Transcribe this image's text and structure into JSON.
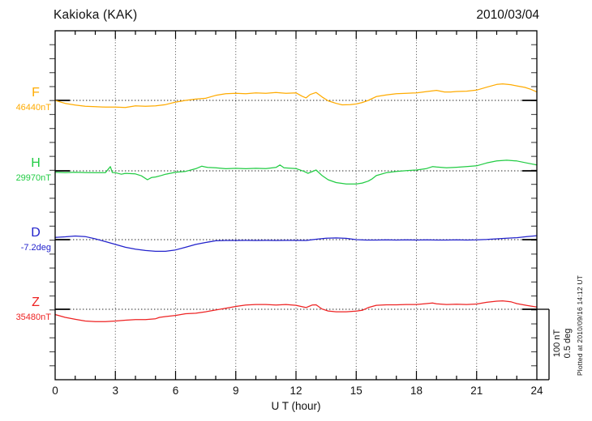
{
  "header": {
    "title": "Kakioka (KAK)",
    "date": "2010/03/04"
  },
  "xlabel": "U T (hour)",
  "scale_bar": {
    "line1": "100 nT",
    "line2": "0.5 deg"
  },
  "footer_note": "Plotted at 2010/09/16 14:12 UT",
  "colors": {
    "F": "#FFAB00",
    "H": "#22CC44",
    "D": "#2222CC",
    "Z": "#EE2222",
    "frame": "#000000",
    "grid": "#444444",
    "tick": "#555555",
    "baseline": "#222222"
  },
  "chart_data": {
    "type": "line",
    "title": "Kakioka (KAK)",
    "date": "2010/03/04",
    "xlabel": "U T (hour)",
    "x_range": [
      0,
      24
    ],
    "x_major_ticks": [
      0,
      3,
      6,
      9,
      12,
      15,
      18,
      21,
      24
    ],
    "x_minor_step_hours": 1,
    "grid": "vertical dotted gridlines every 3 hours; dotted horizontal baseline per trace",
    "legend_position": "left margin labels",
    "scale": {
      "nT_per_bar": 100,
      "deg_per_bar": 0.5
    },
    "series": [
      {
        "name": "F",
        "unit": "nT",
        "baseline": 46440,
        "baseline_label": "46440nT",
        "color": "#FFAB00",
        "points": [
          [
            0,
            46440.0
          ],
          [
            0.5,
            46435.8
          ],
          [
            1,
            46433.5
          ],
          [
            1.5,
            46431.7
          ],
          [
            2,
            46431.1
          ],
          [
            2.5,
            46430.5
          ],
          [
            3,
            46430.5
          ],
          [
            3.5,
            46429.9
          ],
          [
            4,
            46432.3
          ],
          [
            4.5,
            46431.7
          ],
          [
            5,
            46432.3
          ],
          [
            5.5,
            46434.0
          ],
          [
            6,
            46437.6
          ],
          [
            6.5,
            46440.0
          ],
          [
            7,
            46441.8
          ],
          [
            7.5,
            46443.0
          ],
          [
            8,
            46447.1
          ],
          [
            8.5,
            46449.5
          ],
          [
            9,
            46450.1
          ],
          [
            9.5,
            46449.5
          ],
          [
            10,
            46450.7
          ],
          [
            10.5,
            46450.1
          ],
          [
            11,
            46451.3
          ],
          [
            11.5,
            46450.1
          ],
          [
            12,
            46450.7
          ],
          [
            12.3,
            46446.0
          ],
          [
            12.5,
            46443.6
          ],
          [
            12.7,
            46448.3
          ],
          [
            13,
            46451.3
          ],
          [
            13.3,
            46444.8
          ],
          [
            13.6,
            46439.4
          ],
          [
            14,
            46435.8
          ],
          [
            14.3,
            46433.7
          ],
          [
            14.7,
            46434.0
          ],
          [
            15,
            46434.9
          ],
          [
            15.3,
            46437.0
          ],
          [
            15.6,
            46440.0
          ],
          [
            16,
            46445.4
          ],
          [
            16.5,
            46447.7
          ],
          [
            17,
            46449.5
          ],
          [
            17.5,
            46450.1
          ],
          [
            18,
            46450.7
          ],
          [
            18.5,
            46452.5
          ],
          [
            19,
            46454.3
          ],
          [
            19.4,
            46451.9
          ],
          [
            19.7,
            46451.9
          ],
          [
            20,
            46452.7
          ],
          [
            20.5,
            46453.1
          ],
          [
            21,
            46454.6
          ],
          [
            21.5,
            46458.7
          ],
          [
            22,
            46462.6
          ],
          [
            22.3,
            46463.5
          ],
          [
            22.7,
            46462.3
          ],
          [
            23,
            46460.6
          ],
          [
            23.4,
            46458.5
          ],
          [
            23.7,
            46455.8
          ],
          [
            24,
            46451.9
          ]
        ]
      },
      {
        "name": "H",
        "unit": "nT",
        "baseline": 29970,
        "baseline_label": "29970nT",
        "color": "#22CC44",
        "points": [
          [
            0,
            29968.0
          ],
          [
            0.5,
            29967.3
          ],
          [
            1,
            29968.0
          ],
          [
            1.5,
            29967.6
          ],
          [
            2,
            29967.3
          ],
          [
            2.5,
            29967.4
          ],
          [
            2.75,
            29976.0
          ],
          [
            2.85,
            29967.6
          ],
          [
            3,
            29967.3
          ],
          [
            3.3,
            29965.2
          ],
          [
            3.5,
            29966.4
          ],
          [
            4,
            29965.6
          ],
          [
            4.3,
            29962.9
          ],
          [
            4.6,
            29957.3
          ],
          [
            4.8,
            29960.5
          ],
          [
            5,
            29961.3
          ],
          [
            5.3,
            29963.5
          ],
          [
            5.5,
            29965.2
          ],
          [
            6,
            29968.0
          ],
          [
            6.5,
            29969.2
          ],
          [
            7,
            29973.0
          ],
          [
            7.3,
            29976.5
          ],
          [
            7.6,
            29974.8
          ],
          [
            8,
            29974.4
          ],
          [
            8.5,
            29973.0
          ],
          [
            9,
            29973.6
          ],
          [
            9.5,
            29973.0
          ],
          [
            10,
            29973.6
          ],
          [
            10.5,
            29973.2
          ],
          [
            11,
            29974.8
          ],
          [
            11.2,
            29978.3
          ],
          [
            11.4,
            29974.2
          ],
          [
            12,
            29973.2
          ],
          [
            12.4,
            29969.2
          ],
          [
            12.6,
            29966.4
          ],
          [
            12.8,
            29968.8
          ],
          [
            13,
            29971.2
          ],
          [
            13.3,
            29963.2
          ],
          [
            13.6,
            29957.3
          ],
          [
            14,
            29953.3
          ],
          [
            14.5,
            29951.3
          ],
          [
            15,
            29951.3
          ],
          [
            15.3,
            29952.7
          ],
          [
            15.6,
            29955.4
          ],
          [
            15.8,
            29958.7
          ],
          [
            16,
            29963.2
          ],
          [
            16.5,
            29967.3
          ],
          [
            17,
            29969.2
          ],
          [
            17.5,
            29970.4
          ],
          [
            18,
            29971.2
          ],
          [
            18.5,
            29973.2
          ],
          [
            18.8,
            29976.0
          ],
          [
            19,
            29975.4
          ],
          [
            19.5,
            29974.4
          ],
          [
            20,
            29975.1
          ],
          [
            20.5,
            29976.0
          ],
          [
            21,
            29977.1
          ],
          [
            21.5,
            29981.1
          ],
          [
            22,
            29984.0
          ],
          [
            22.5,
            29985.1
          ],
          [
            23,
            29984.0
          ],
          [
            23.5,
            29981.1
          ],
          [
            24,
            29978.3
          ]
        ]
      },
      {
        "name": "D",
        "unit": "deg",
        "baseline": -7.2,
        "baseline_label": "-7.2deg",
        "color": "#2222CC",
        "points": [
          [
            0,
            -7.184
          ],
          [
            0.5,
            -7.18
          ],
          [
            1,
            -7.174
          ],
          [
            1.5,
            -7.178
          ],
          [
            2,
            -7.194
          ],
          [
            2.5,
            -7.214
          ],
          [
            3,
            -7.234
          ],
          [
            3.5,
            -7.254
          ],
          [
            4,
            -7.267
          ],
          [
            4.5,
            -7.277
          ],
          [
            5,
            -7.283
          ],
          [
            5.5,
            -7.283
          ],
          [
            6,
            -7.273
          ],
          [
            6.5,
            -7.254
          ],
          [
            7,
            -7.234
          ],
          [
            7.5,
            -7.22
          ],
          [
            8,
            -7.208
          ],
          [
            8.5,
            -7.206
          ],
          [
            9,
            -7.206
          ],
          [
            9.5,
            -7.205
          ],
          [
            10,
            -7.206
          ],
          [
            10.5,
            -7.205
          ],
          [
            11,
            -7.206
          ],
          [
            11.5,
            -7.205
          ],
          [
            12,
            -7.205
          ],
          [
            12.5,
            -7.206
          ],
          [
            13,
            -7.197
          ],
          [
            13.5,
            -7.19
          ],
          [
            14,
            -7.188
          ],
          [
            14.5,
            -7.191
          ],
          [
            15,
            -7.2
          ],
          [
            15.5,
            -7.203
          ],
          [
            16,
            -7.203
          ],
          [
            16.5,
            -7.202
          ],
          [
            17,
            -7.203
          ],
          [
            17.5,
            -7.202
          ],
          [
            18,
            -7.203
          ],
          [
            18.5,
            -7.202
          ],
          [
            19,
            -7.203
          ],
          [
            19.5,
            -7.203
          ],
          [
            20,
            -7.202
          ],
          [
            20.5,
            -7.203
          ],
          [
            21,
            -7.202
          ],
          [
            21.5,
            -7.199
          ],
          [
            22,
            -7.194
          ],
          [
            22.5,
            -7.19
          ],
          [
            23,
            -7.186
          ],
          [
            23.5,
            -7.179
          ],
          [
            24,
            -7.172
          ]
        ]
      },
      {
        "name": "Z",
        "unit": "nT",
        "baseline": 35480,
        "baseline_label": "35480nT",
        "color": "#EE2222",
        "points": [
          [
            0,
            35472.5
          ],
          [
            0.5,
            35468.5
          ],
          [
            1,
            35465.7
          ],
          [
            1.5,
            35463.3
          ],
          [
            2,
            35462.5
          ],
          [
            2.5,
            35462.5
          ],
          [
            3,
            35463.3
          ],
          [
            3.5,
            35464.5
          ],
          [
            4,
            35465.4
          ],
          [
            4.5,
            35465.4
          ],
          [
            5,
            35466.5
          ],
          [
            5.2,
            35468.5
          ],
          [
            5.5,
            35469.6
          ],
          [
            6,
            35471.3
          ],
          [
            6.5,
            35473.7
          ],
          [
            7,
            35474.4
          ],
          [
            7.5,
            35476.4
          ],
          [
            8,
            35479.0
          ],
          [
            8.5,
            35481.5
          ],
          [
            9,
            35484.0
          ],
          [
            9.5,
            35486.0
          ],
          [
            10,
            35486.8
          ],
          [
            10.5,
            35486.8
          ],
          [
            11,
            35486.0
          ],
          [
            11.5,
            35486.8
          ],
          [
            12,
            35485.6
          ],
          [
            12.5,
            35482.4
          ],
          [
            12.8,
            35486.0
          ],
          [
            13,
            35486.3
          ],
          [
            13.3,
            35480.4
          ],
          [
            13.6,
            35477.6
          ],
          [
            14,
            35476.4
          ],
          [
            14.5,
            35476.4
          ],
          [
            15,
            35477.3
          ],
          [
            15.3,
            35478.5
          ],
          [
            15.6,
            35482.4
          ],
          [
            16,
            35485.6
          ],
          [
            16.5,
            35486.3
          ],
          [
            17,
            35486.3
          ],
          [
            17.5,
            35486.8
          ],
          [
            18,
            35486.8
          ],
          [
            18.5,
            35488.0
          ],
          [
            18.8,
            35488.9
          ],
          [
            19,
            35487.7
          ],
          [
            19.5,
            35486.8
          ],
          [
            20,
            35487.1
          ],
          [
            20.5,
            35486.8
          ],
          [
            21,
            35487.5
          ],
          [
            21.5,
            35489.9
          ],
          [
            22,
            35491.5
          ],
          [
            22.3,
            35491.9
          ],
          [
            22.7,
            35490.7
          ],
          [
            23,
            35488.0
          ],
          [
            23.5,
            35485.4
          ],
          [
            24,
            35483.2
          ]
        ]
      }
    ]
  }
}
